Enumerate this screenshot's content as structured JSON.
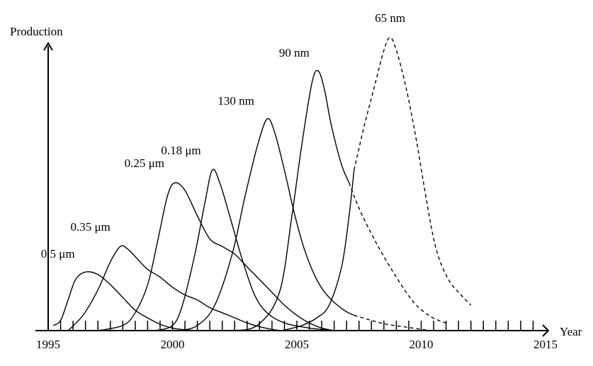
{
  "chart_data": {
    "type": "line",
    "title": "",
    "ylabel": "Production",
    "xlabel": "Year",
    "xlim": [
      1995,
      2015
    ],
    "ylim": [
      0,
      100
    ],
    "x_ticks": [
      1995,
      2000,
      2005,
      2010,
      2015
    ],
    "minor_tick_step": 0.5,
    "grid": false,
    "legend": "none",
    "series": [
      {
        "name": "0.5 μm",
        "solid": [
          [
            1995.2,
            2
          ],
          [
            1995.5,
            4
          ],
          [
            1995.8,
            12
          ],
          [
            1996.1,
            20
          ],
          [
            1996.5,
            23
          ],
          [
            1997.0,
            22
          ],
          [
            1997.5,
            18
          ],
          [
            1998.0,
            13
          ],
          [
            1998.5,
            8
          ],
          [
            1999.0,
            5
          ],
          [
            1999.5,
            2.5
          ],
          [
            2000.0,
            1
          ],
          [
            2000.5,
            0.3
          ],
          [
            2001.0,
            0
          ]
        ],
        "dashed": []
      },
      {
        "name": "0.35 μm",
        "solid": [
          [
            1995.8,
            0
          ],
          [
            1996.4,
            6
          ],
          [
            1997.0,
            16
          ],
          [
            1997.5,
            27
          ],
          [
            1997.9,
            33
          ],
          [
            1998.2,
            32
          ],
          [
            1998.6,
            28
          ],
          [
            1999.0,
            24
          ],
          [
            1999.5,
            21
          ],
          [
            2000.0,
            17
          ],
          [
            2000.5,
            14
          ],
          [
            2001.0,
            12
          ],
          [
            2001.5,
            9
          ],
          [
            2002.0,
            7
          ],
          [
            2002.5,
            5
          ],
          [
            2003.0,
            3
          ],
          [
            2003.5,
            1.5
          ],
          [
            2004.0,
            0.5
          ],
          [
            2004.3,
            0
          ]
        ],
        "dashed": []
      },
      {
        "name": "0.25 μm",
        "solid": [
          [
            1997.0,
            0
          ],
          [
            1998.0,
            2
          ],
          [
            1998.5,
            7
          ],
          [
            1999.0,
            18
          ],
          [
            1999.4,
            35
          ],
          [
            1999.8,
            53
          ],
          [
            2000.1,
            58
          ],
          [
            2000.5,
            55
          ],
          [
            2001.0,
            45
          ],
          [
            2001.5,
            36
          ],
          [
            2002.0,
            33
          ],
          [
            2002.5,
            30
          ],
          [
            2003.0,
            25
          ],
          [
            2003.5,
            20
          ],
          [
            2004.0,
            15
          ],
          [
            2004.5,
            10
          ],
          [
            2005.0,
            6
          ],
          [
            2005.5,
            3
          ],
          [
            2006.0,
            1
          ],
          [
            2006.5,
            0
          ]
        ],
        "dashed": []
      },
      {
        "name": "0.18 μm",
        "solid": [
          [
            1999.3,
            0
          ],
          [
            2000.0,
            2
          ],
          [
            2000.4,
            10
          ],
          [
            2000.9,
            30
          ],
          [
            2001.3,
            50
          ],
          [
            2001.6,
            63
          ],
          [
            2001.9,
            58
          ],
          [
            2002.3,
            45
          ],
          [
            2002.8,
            28
          ],
          [
            2003.3,
            14
          ],
          [
            2003.8,
            7
          ],
          [
            2004.5,
            3
          ],
          [
            2005.5,
            1
          ],
          [
            2006.2,
            0.3
          ],
          [
            2006.5,
            0
          ]
        ],
        "dashed": []
      },
      {
        "name": "130 nm",
        "solid": [
          [
            2000.3,
            0
          ],
          [
            2001.0,
            2
          ],
          [
            2001.7,
            10
          ],
          [
            2002.4,
            30
          ],
          [
            2002.9,
            52
          ],
          [
            2003.4,
            72
          ],
          [
            2003.8,
            83
          ],
          [
            2004.1,
            78
          ],
          [
            2004.5,
            63
          ],
          [
            2004.9,
            46
          ],
          [
            2005.3,
            32
          ],
          [
            2005.8,
            20
          ],
          [
            2006.3,
            13
          ],
          [
            2006.9,
            8
          ],
          [
            2007.3,
            6
          ]
        ],
        "dashed": [
          [
            2007.3,
            6
          ],
          [
            2008.0,
            4
          ],
          [
            2008.6,
            2.5
          ],
          [
            2009.3,
            1.5
          ],
          [
            2010.0,
            0.5
          ],
          [
            2010.4,
            0
          ]
        ]
      },
      {
        "name": "90 nm",
        "solid": [
          [
            2002.3,
            0
          ],
          [
            2003.4,
            2
          ],
          [
            2004.3,
            15
          ],
          [
            2004.8,
            45
          ],
          [
            2005.2,
            73
          ],
          [
            2005.6,
            97
          ],
          [
            2005.85,
            102
          ],
          [
            2006.1,
            95
          ],
          [
            2006.4,
            80
          ],
          [
            2006.8,
            65
          ],
          [
            2007.1,
            58
          ]
        ],
        "dashed": [
          [
            2007.1,
            58
          ],
          [
            2007.5,
            48
          ],
          [
            2008.0,
            38
          ],
          [
            2008.5,
            29
          ],
          [
            2009.0,
            21
          ],
          [
            2009.4,
            15
          ],
          [
            2009.8,
            10
          ],
          [
            2010.3,
            6
          ],
          [
            2010.7,
            4
          ],
          [
            2011.0,
            3
          ]
        ]
      },
      {
        "name": "65 nm",
        "solid": [
          [
            2004.4,
            0
          ],
          [
            2005.2,
            2
          ],
          [
            2005.8,
            5
          ],
          [
            2006.3,
            10
          ],
          [
            2006.8,
            25
          ],
          [
            2007.1,
            45
          ],
          [
            2007.3,
            63
          ]
        ],
        "dashed": [
          [
            2007.3,
            63
          ],
          [
            2007.7,
            80
          ],
          [
            2008.1,
            95
          ],
          [
            2008.5,
            110
          ],
          [
            2008.75,
            115
          ],
          [
            2009.0,
            110
          ],
          [
            2009.4,
            95
          ],
          [
            2009.8,
            75
          ],
          [
            2010.2,
            52
          ],
          [
            2010.6,
            32
          ],
          [
            2011.1,
            20
          ],
          [
            2011.6,
            14
          ],
          [
            2012.0,
            10
          ]
        ]
      }
    ]
  }
}
